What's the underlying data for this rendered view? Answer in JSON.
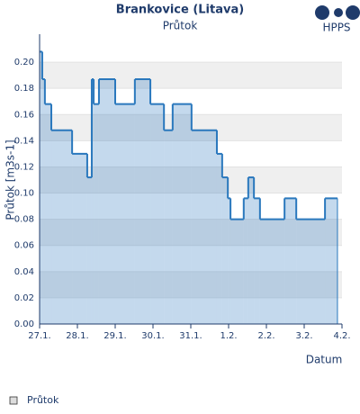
{
  "chart_data": {
    "type": "step",
    "title": "Brankovice (Litava)",
    "subtitle": "Průtok",
    "x_label": "Datum",
    "y_label": "Průtok [m3s-1]",
    "xlim": [
      0,
      8
    ],
    "xticks": [
      {
        "value": 0,
        "label": "27.1."
      },
      {
        "value": 1,
        "label": "28.1."
      },
      {
        "value": 2,
        "label": "29.1."
      },
      {
        "value": 3,
        "label": "30.1."
      },
      {
        "value": 4,
        "label": "31.1."
      },
      {
        "value": 5,
        "label": "1.2."
      },
      {
        "value": 6,
        "label": "2.2."
      },
      {
        "value": 7,
        "label": "3.2."
      },
      {
        "value": 8,
        "label": "4.2."
      }
    ],
    "ylim": [
      0,
      0.22
    ],
    "yticks": [
      {
        "value": 0,
        "label": "0.00"
      },
      {
        "value": 0.02,
        "label": "0.02"
      },
      {
        "value": 0.04,
        "label": "0.04"
      },
      {
        "value": 0.06,
        "label": "0.06"
      },
      {
        "value": 0.08,
        "label": "0.08"
      },
      {
        "value": 0.1,
        "label": "0.10"
      },
      {
        "value": 0.12,
        "label": "0.12"
      },
      {
        "value": 0.14,
        "label": "0.14"
      },
      {
        "value": 0.16,
        "label": "0.16"
      },
      {
        "value": 0.18,
        "label": "0.18"
      },
      {
        "value": 0.2,
        "label": "0.20"
      }
    ],
    "grid": "bands",
    "x": [
      0,
      0.07,
      0.14,
      0.31,
      0.86,
      1.26,
      1.38,
      1.43,
      1.57,
      2.0,
      2.52,
      2.93,
      3.29,
      3.52,
      4.02,
      4.69,
      4.83,
      4.98,
      5.05,
      5.4,
      5.52,
      5.67,
      5.83,
      6.48,
      6.79,
      7.55,
      7.88
    ],
    "series": [
      {
        "name": "Průtok",
        "color": "#2a78bd",
        "values": [
          0.208,
          0.187,
          0.168,
          0.148,
          0.13,
          0.112,
          0.187,
          0.168,
          0.187,
          0.168,
          0.187,
          0.168,
          0.148,
          0.168,
          0.148,
          0.13,
          0.112,
          0.096,
          0.08,
          0.096,
          0.112,
          0.096,
          0.08,
          0.096,
          0.08,
          0.096,
          0.096
        ]
      }
    ]
  },
  "logo": "HPPS"
}
